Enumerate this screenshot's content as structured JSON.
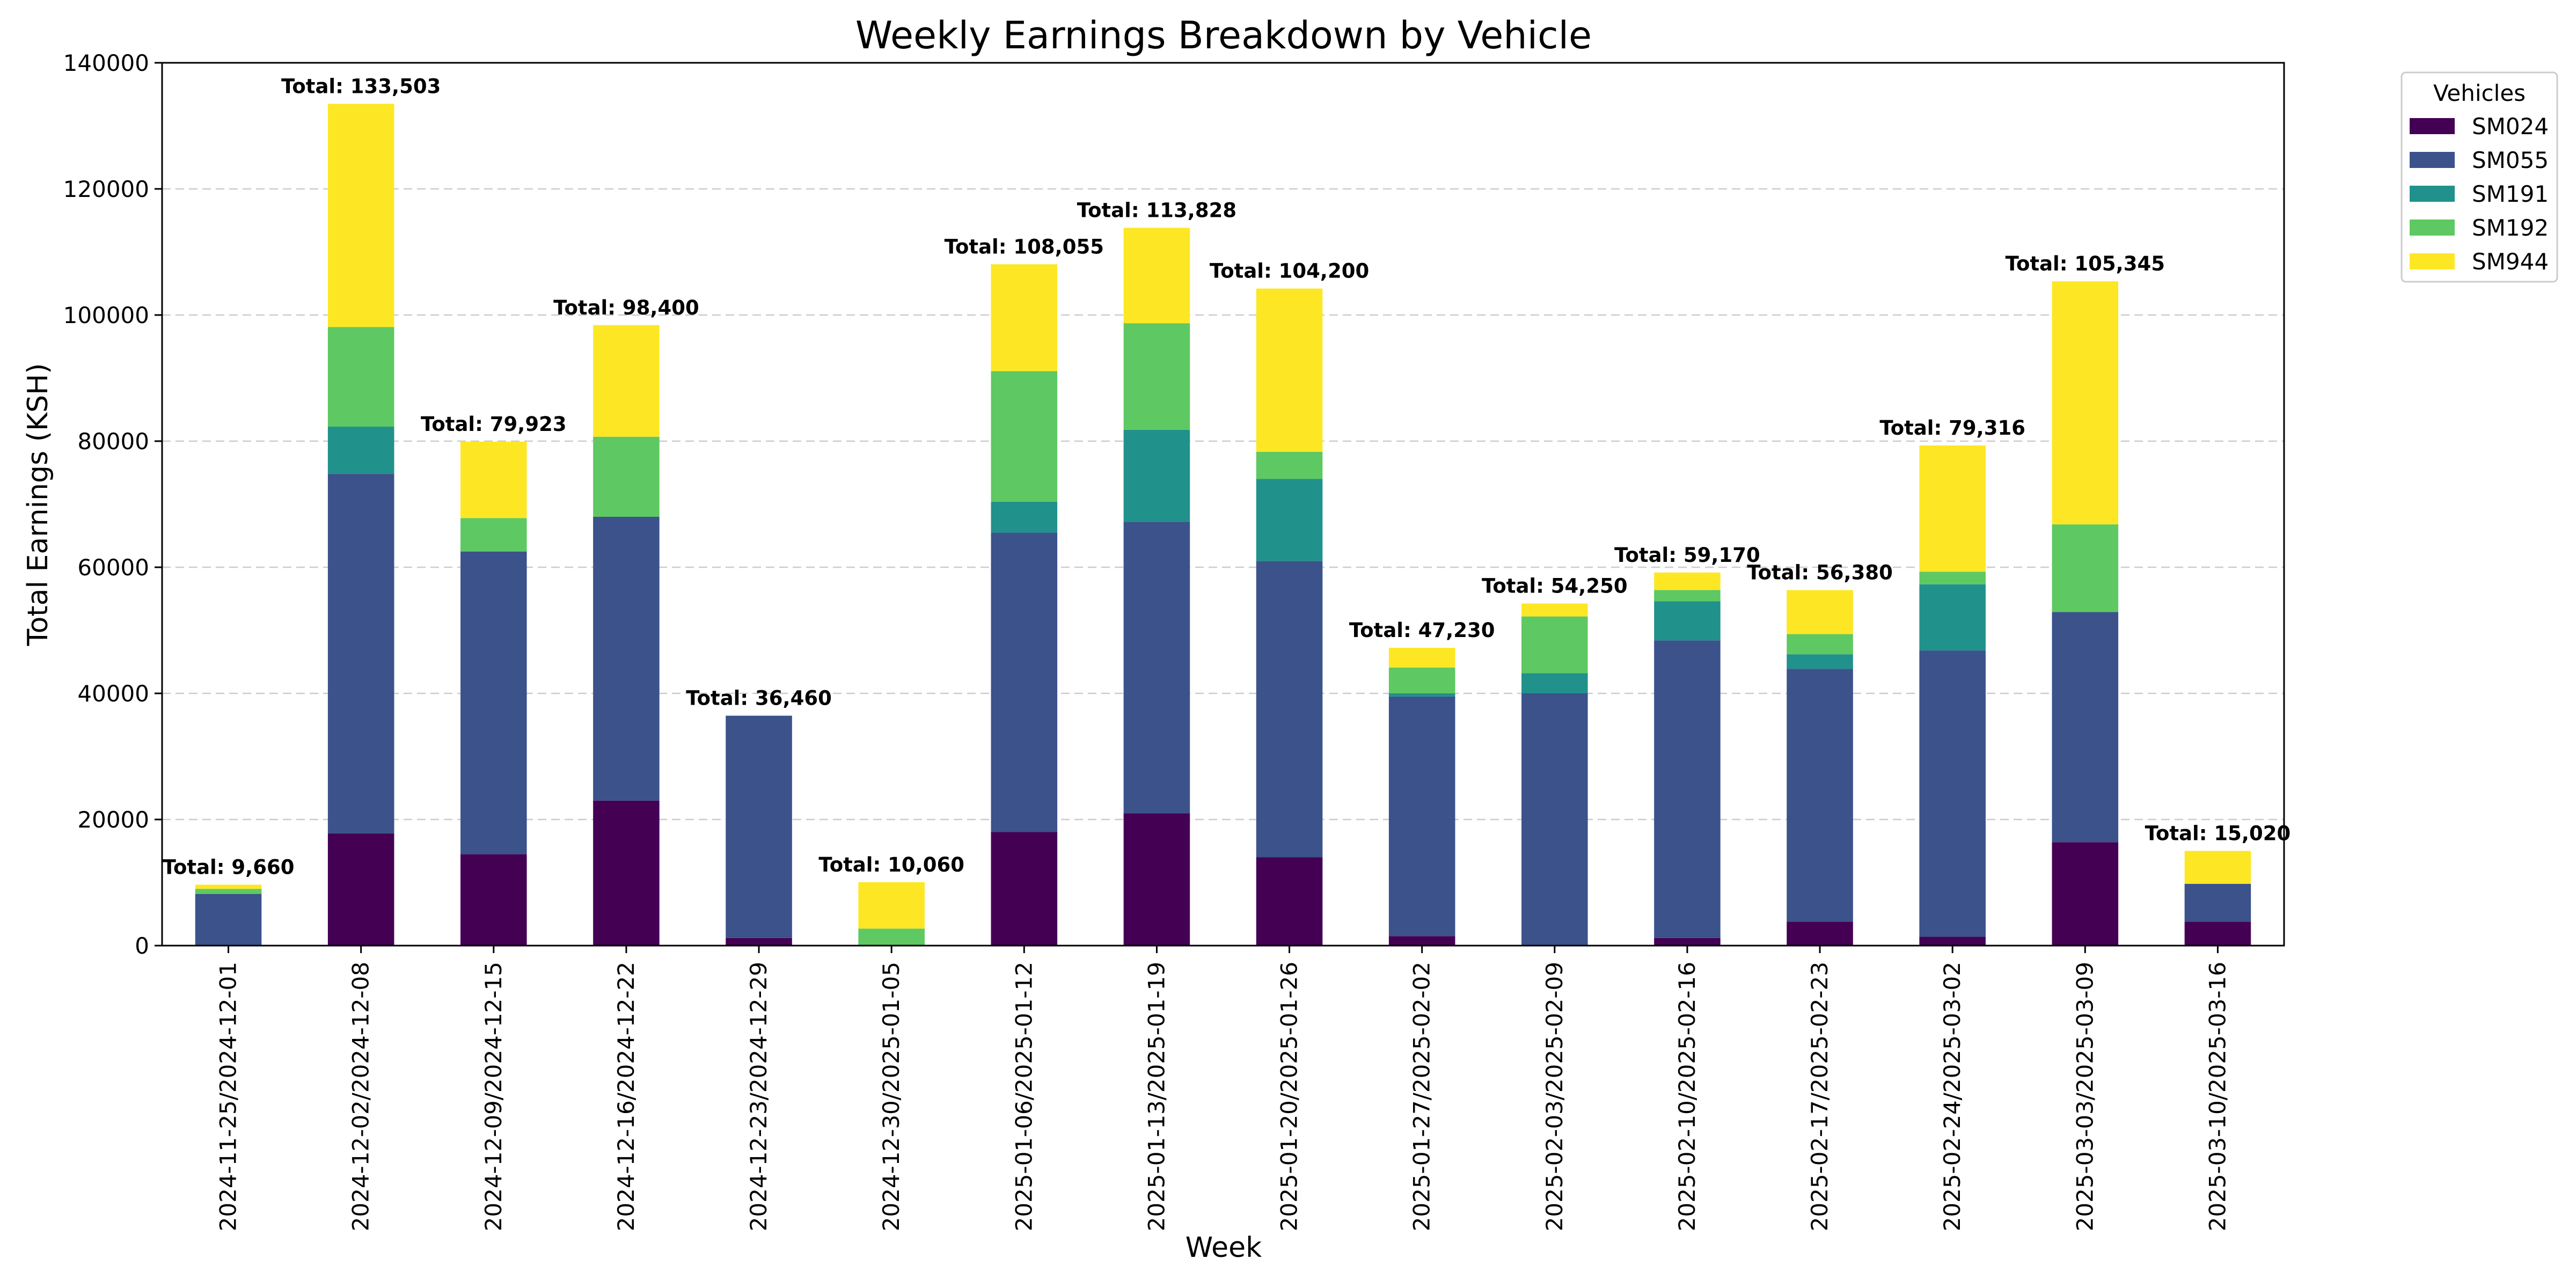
{
  "chart_data": {
    "type": "bar",
    "stacked": true,
    "title": "Weekly Earnings Breakdown by Vehicle",
    "xlabel": "Week",
    "ylabel": "Total Earnings (KSH)",
    "ylim": [
      0,
      140000
    ],
    "yticks": [
      0,
      20000,
      40000,
      60000,
      80000,
      100000,
      120000,
      140000
    ],
    "grid": "horizontal dashed",
    "legend": {
      "title": "Vehicles",
      "placement": "outside top-right"
    },
    "total_prefix": "Total: ",
    "categories": [
      "2024-11-25/2024-12-01",
      "2024-12-02/2024-12-08",
      "2024-12-09/2024-12-15",
      "2024-12-16/2024-12-22",
      "2024-12-23/2024-12-29",
      "2024-12-30/2025-01-05",
      "2025-01-06/2025-01-12",
      "2025-01-13/2025-01-19",
      "2025-01-20/2025-01-26",
      "2025-01-27/2025-02-02",
      "2025-02-03/2025-02-09",
      "2025-02-10/2025-02-16",
      "2025-02-17/2025-02-23",
      "2025-02-24/2025-03-02",
      "2025-03-03/2025-03-09",
      "2025-03-10/2025-03-16"
    ],
    "series": [
      {
        "name": "SM024",
        "color": "#440154",
        "values": [
          0,
          17800,
          14500,
          23000,
          1200,
          0,
          18000,
          21000,
          14000,
          1500,
          0,
          1200,
          3800,
          1400,
          16400,
          3800
        ]
      },
      {
        "name": "SM055",
        "color": "#3b528b",
        "values": [
          8200,
          57000,
          48000,
          45000,
          35260,
          0,
          47500,
          46200,
          47000,
          38000,
          40000,
          47200,
          40100,
          45400,
          36500,
          6000
        ]
      },
      {
        "name": "SM191",
        "color": "#21918c",
        "values": [
          0,
          7500,
          0,
          0,
          0,
          0,
          4900,
          14600,
          13000,
          500,
          3200,
          6200,
          2300,
          10500,
          0,
          0
        ]
      },
      {
        "name": "SM192",
        "color": "#5ec962",
        "values": [
          800,
          15800,
          5300,
          12700,
          0,
          2700,
          20700,
          16900,
          4300,
          4100,
          9000,
          1800,
          3200,
          2000,
          13900,
          0
        ]
      },
      {
        "name": "SM944",
        "color": "#fde725",
        "values": [
          660,
          35403,
          12123,
          17700,
          0,
          7360,
          16955,
          15128,
          25900,
          3130,
          2050,
          2770,
          6980,
          20016,
          38545,
          5220
        ]
      }
    ],
    "totals": [
      "9,660",
      "133,503",
      "79,923",
      "98,400",
      "36,460",
      "10,060",
      "108,055",
      "113,828",
      "104,200",
      "47,230",
      "54,250",
      "59,170",
      "56,380",
      "79,316",
      "105,345",
      "15,020"
    ]
  }
}
